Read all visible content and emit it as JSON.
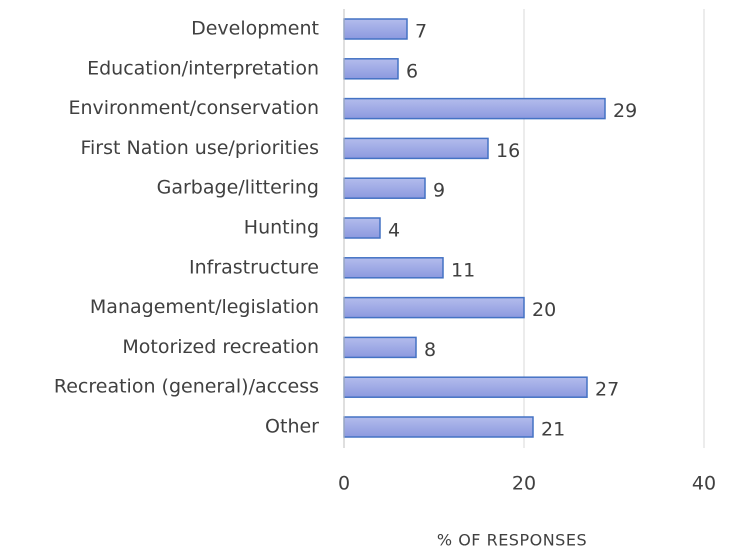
{
  "chart_data": {
    "type": "bar",
    "horizontal": true,
    "categories": [
      "Development",
      "Education/interpretation",
      "Environment/conservation",
      "First Nation use/priorities",
      "Garbage/littering",
      "Hunting",
      "Infrastructure",
      "Management/legislation",
      "Motorized recreation",
      "Recreation (general)/access",
      "Other"
    ],
    "values": [
      7,
      6,
      29,
      16,
      9,
      4,
      11,
      20,
      8,
      27,
      21
    ],
    "color": "#4472c4",
    "xlabel": "% OF RESPONSES",
    "xlim": [
      0,
      40
    ],
    "xticks": [
      0,
      20,
      40
    ],
    "grid": true
  }
}
